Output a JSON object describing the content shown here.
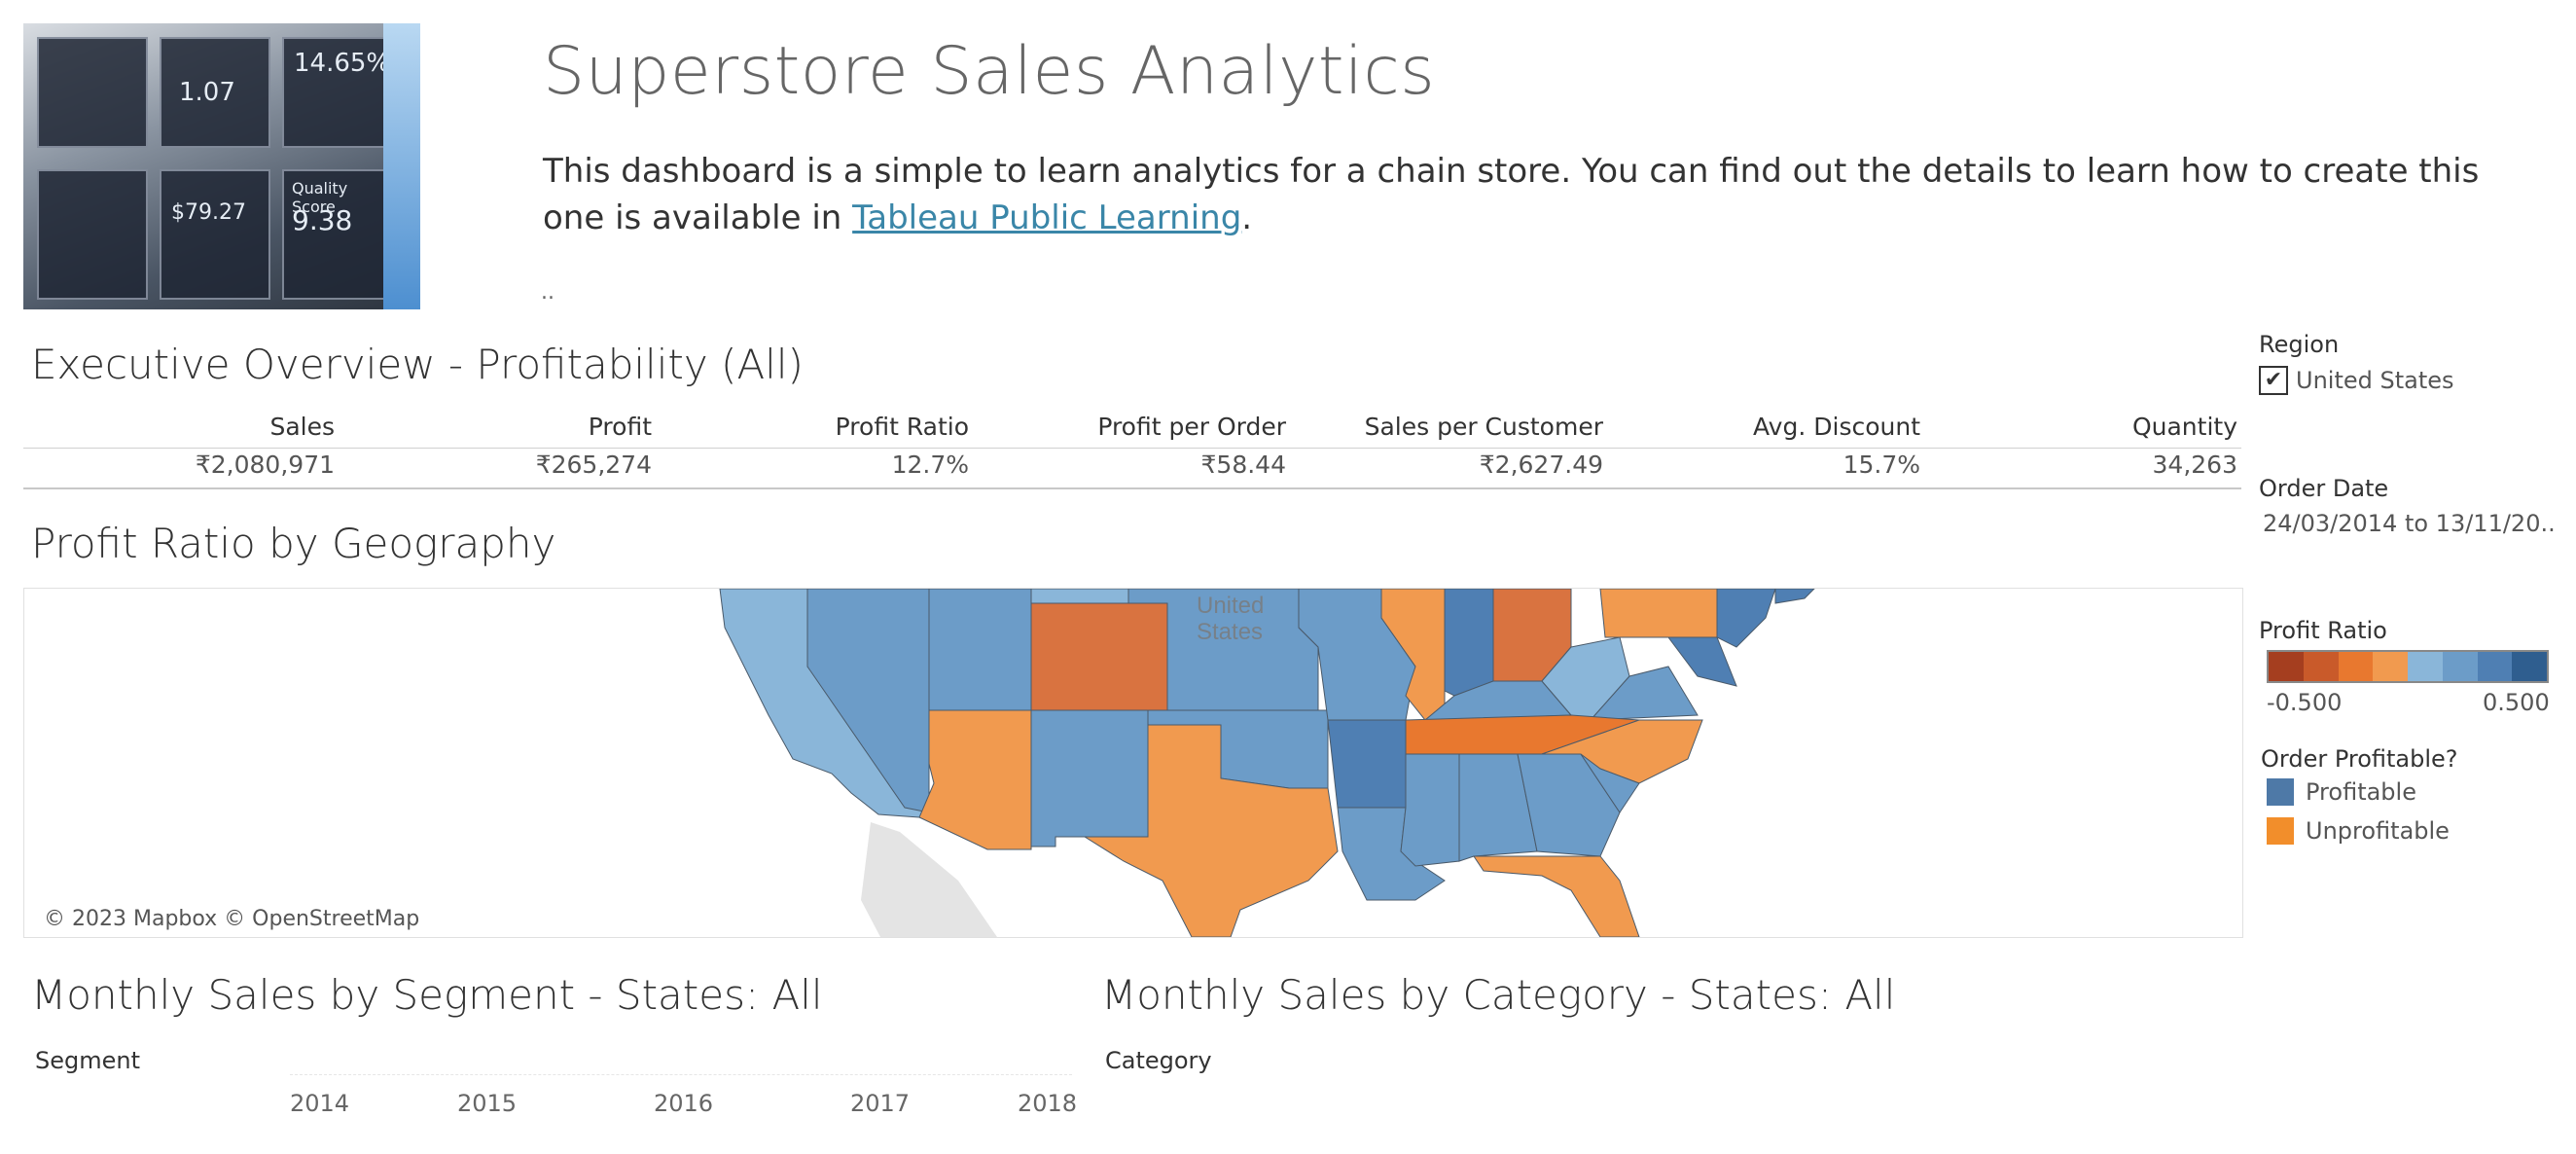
{
  "header": {
    "title": "Superstore Sales Analytics",
    "description": "This dashboard is a simple to learn analytics for a chain store. You can find out the details to learn how to create this one is available in",
    "link_text": "Tableau Public Learning",
    "link_suffix": ".",
    "dots": ".."
  },
  "hero_image": {
    "tiles": [
      "14.65%",
      "Quality Score",
      "9.38",
      "$79.27",
      "1.07"
    ]
  },
  "overview": {
    "title": "Executive Overview - Profitability (All)",
    "columns": [
      "Sales",
      "Profit",
      "Profit Ratio",
      "Profit per Order",
      "Sales per Customer",
      "Avg. Discount",
      "Quantity"
    ],
    "values": [
      "₹2,080,971",
      "₹265,274",
      "12.7%",
      "₹58.44",
      "₹2,627.49",
      "15.7%",
      "34,263"
    ]
  },
  "map": {
    "title": "Profit Ratio by Geography",
    "country_label": "United States",
    "credit": "© 2023 Mapbox © OpenStreetMap"
  },
  "filters": {
    "region_label": "Region",
    "region_value": "United States",
    "region_checked": "✔",
    "order_date_label": "Order Date",
    "order_date_value": "24/03/2014 to 13/11/20.."
  },
  "legend_profit_ratio": {
    "label": "Profit Ratio",
    "min": "-0.500",
    "max": "0.500",
    "colors": [
      "#a53e1f",
      "#c95a2a",
      "#e8782f",
      "#f19a4f",
      "#8ab6d9",
      "#6c9cc8",
      "#4f7fb3",
      "#2f5e8f"
    ]
  },
  "legend_profitable": {
    "label": "Order Profitable?",
    "items": [
      {
        "label": "Profitable",
        "color": "#4e79a7"
      },
      {
        "label": "Unprofitable",
        "color": "#f28e2b"
      }
    ]
  },
  "segment_chart": {
    "title": "Monthly Sales by Segment - States: All",
    "dim_label": "Segment",
    "years": [
      "2014",
      "2015",
      "2016",
      "2017",
      "2018"
    ]
  },
  "category_chart": {
    "title": "Monthly Sales by Category - States: All",
    "dim_label": "Category"
  }
}
